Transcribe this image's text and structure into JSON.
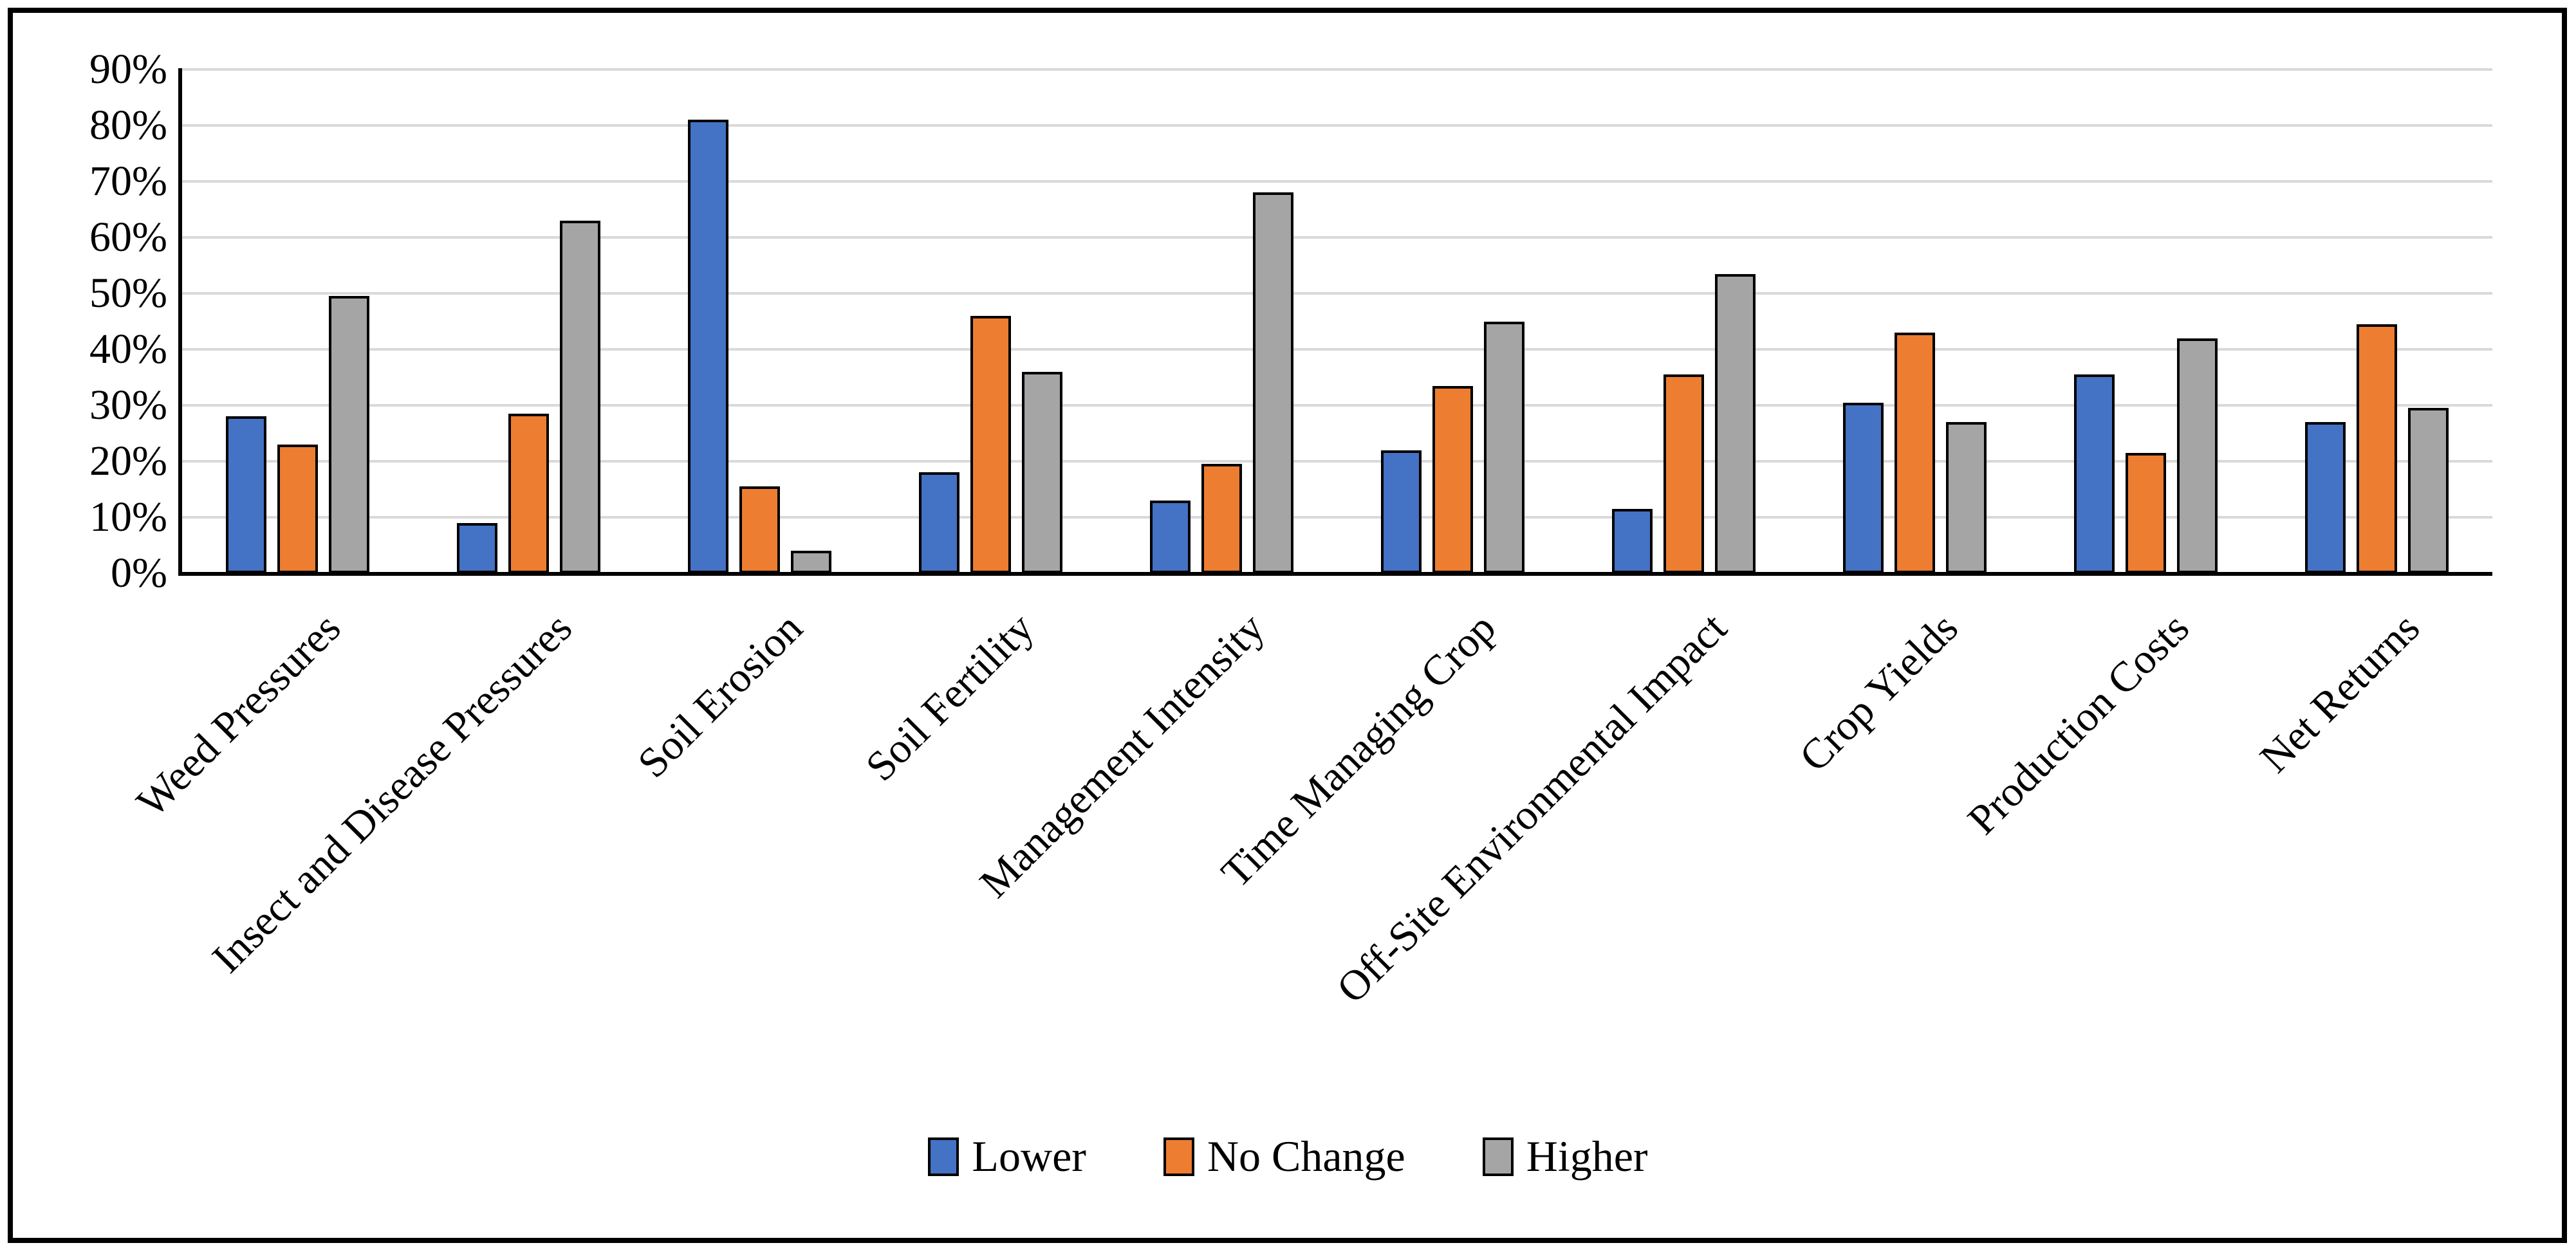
{
  "chart_data": {
    "type": "bar",
    "title": "",
    "categories": [
      "Weed Pressures",
      "Insect and Disease Pressures",
      "Soil Erosion",
      "Soil Fertility",
      "Management Intensity",
      "Time Managing Crop",
      "Off-Site Environmental Impact",
      "Crop Yields",
      "Production Costs",
      "Net Returns"
    ],
    "series": [
      {
        "name": "Lower",
        "color": "#4472C4",
        "values": [
          28,
          9,
          81,
          18,
          13,
          22,
          11.5,
          30.5,
          35.5,
          27
        ]
      },
      {
        "name": "No Change",
        "color": "#ED7D31",
        "values": [
          23,
          28.5,
          15.5,
          46,
          19.5,
          33.5,
          35.5,
          43,
          21.5,
          44.5
        ]
      },
      {
        "name": "Higher",
        "color": "#A5A5A5",
        "values": [
          49.5,
          63,
          4,
          36,
          68,
          45,
          53.5,
          27,
          42,
          29.5
        ]
      }
    ],
    "y_ticks": [
      "0%",
      "10%",
      "20%",
      "30%",
      "40%",
      "50%",
      "60%",
      "70%",
      "80%",
      "90%"
    ],
    "ylim": [
      0,
      90
    ],
    "xlabel": "",
    "ylabel": "",
    "grid": true,
    "gridline_color": "#D9D9D9",
    "axis_color": "#000000",
    "bar_border_color": "#000000",
    "legend_position": "bottom",
    "label_rotation_deg": 45
  }
}
